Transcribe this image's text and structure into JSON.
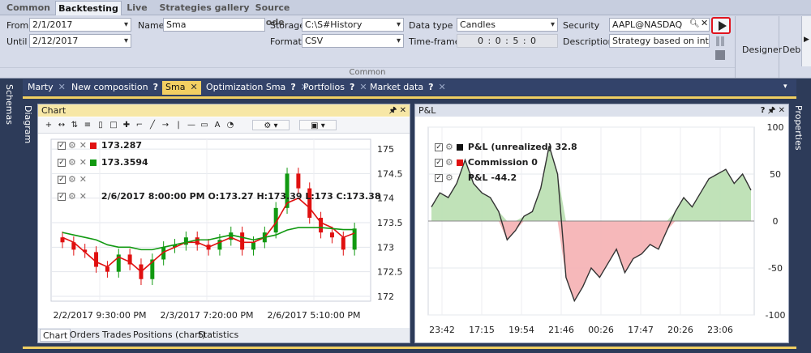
{
  "ribbon": {
    "tabs": [
      {
        "label": "Common",
        "active": false
      },
      {
        "label": "Backtesting",
        "active": true
      },
      {
        "label": "Live",
        "active": false
      },
      {
        "label": "Strategies gallery",
        "active": false
      },
      {
        "label": "Source code",
        "active": false
      }
    ],
    "from_label": "From",
    "from_value": "2/1/2017",
    "until_label": "Until",
    "until_value": "2/12/2017",
    "name_label": "Name",
    "name_value": "Sma",
    "storage_label": "Storage",
    "storage_value": "C:\\S#History",
    "format_label": "Format",
    "format_value": "CSV",
    "datatype_label": "Data type",
    "datatype_value": "Candles",
    "timeframe_label": "Time-frame",
    "timeframe_value": "0 : 0 : 5 : 0",
    "security_label": "Security",
    "security_value": "AAPL@NASDAQ",
    "description_label": "Description",
    "description_value": "Strategy based on intersect",
    "group_label": "Common",
    "designer_label": "Designer",
    "debug_label": "Deb"
  },
  "side_tabs": {
    "schemas": "Schemas",
    "diagram": "Diagram",
    "properties": "Properties"
  },
  "doc_tabs": [
    {
      "label": "Marty",
      "q": false,
      "active": false
    },
    {
      "label": "New composition",
      "q": true,
      "active": false
    },
    {
      "label": "Sma",
      "q": false,
      "active": true
    },
    {
      "label": "Optimization Sma",
      "q": true,
      "active": false
    },
    {
      "label": "Portfolios",
      "q": true,
      "active": false
    },
    {
      "label": "Market data",
      "q": true,
      "active": false
    }
  ],
  "chart_panel": {
    "title": "Chart",
    "legend": [
      {
        "value": "173.287",
        "color": "#e01010"
      },
      {
        "value": "173.3594",
        "color": "#119911"
      },
      {
        "value": "",
        "color": ""
      },
      {
        "value": "2/6/2017 8:00:00 PM O:173.27 H:173.39 L:173 C:173.38",
        "color": ""
      }
    ],
    "bottom_tabs": [
      "Chart",
      "Orders",
      "Trades",
      "Positions (chart)",
      "Statistics"
    ]
  },
  "pl_panel": {
    "title": "P&L",
    "legend": [
      {
        "label": "P&L (unrealized)",
        "value": "32.8",
        "color": "#111111"
      },
      {
        "label": "Commission",
        "value": "0",
        "color": "#e01010"
      },
      {
        "label": "P&L",
        "value": "-44.2",
        "color": ""
      }
    ]
  },
  "chart_data": [
    {
      "type": "candlestick",
      "x_tick_labels": [
        "2/2/2017 9:30:00 PM",
        "2/3/2017 7:20:00 PM",
        "2/6/2017 5:10:00 PM"
      ],
      "y_tick_labels": [
        "175",
        "174.5",
        "174",
        "173.5",
        "173",
        "172.5",
        "172"
      ],
      "ylim": [
        171.9,
        175.2
      ],
      "series": [
        {
          "name": "173.287",
          "color": "#e01010",
          "values": [
            173.2,
            173.1,
            172.9,
            172.7,
            172.6,
            172.8,
            172.7,
            172.5,
            172.7,
            172.9,
            173.0,
            173.1,
            173.1,
            173.0,
            173.1,
            173.2,
            173.1,
            173.1,
            173.2,
            173.5,
            173.9,
            174.0,
            173.8,
            173.5,
            173.4,
            173.2,
            173.287
          ]
        },
        {
          "name": "173.3594",
          "color": "#119911",
          "values": [
            173.3,
            173.25,
            173.2,
            173.15,
            173.05,
            173.0,
            173.0,
            172.95,
            172.95,
            173.0,
            173.05,
            173.1,
            173.15,
            173.15,
            173.2,
            173.25,
            173.2,
            173.15,
            173.2,
            173.25,
            173.35,
            173.4,
            173.4,
            173.4,
            173.38,
            173.36,
            173.3594
          ]
        }
      ],
      "closes": [
        173.1,
        172.95,
        172.9,
        172.6,
        172.5,
        172.85,
        172.65,
        172.35,
        172.75,
        173.0,
        173.05,
        173.2,
        173.05,
        172.95,
        173.15,
        173.3,
        172.95,
        173.1,
        173.3,
        173.8,
        174.5,
        174.2,
        173.6,
        173.3,
        173.2,
        172.95,
        173.38
      ]
    },
    {
      "type": "area",
      "x_tick_labels": [
        "23:42",
        "17:15",
        "19:54",
        "21:46",
        "00:26",
        "17:47",
        "20:26",
        "23:06"
      ],
      "y_tick_labels": [
        "100",
        "50",
        "0",
        "-50",
        "-100"
      ],
      "ylim": [
        -100,
        100
      ],
      "values": [
        15,
        30,
        25,
        40,
        65,
        40,
        30,
        25,
        10,
        -20,
        -10,
        5,
        10,
        35,
        80,
        50,
        -60,
        -85,
        -70,
        -50,
        -60,
        -45,
        -30,
        -55,
        -40,
        -35,
        -25,
        -30,
        -10,
        10,
        25,
        15,
        30,
        45,
        50,
        55,
        40,
        50,
        32.8
      ]
    }
  ]
}
